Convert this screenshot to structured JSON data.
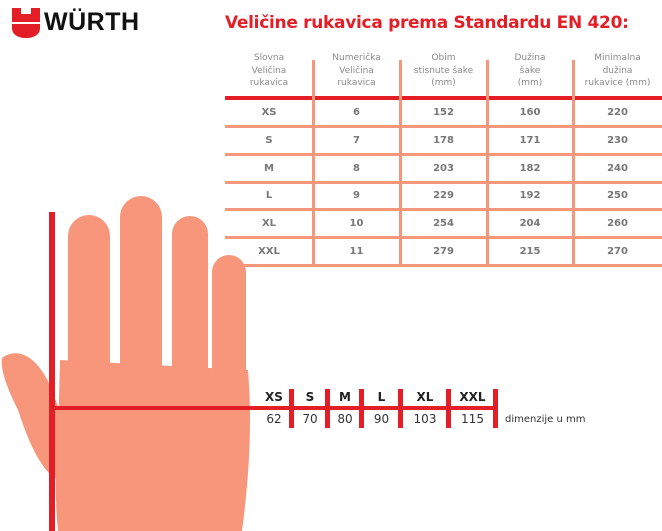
{
  "logo": {
    "text": "WÜRTH"
  },
  "title": "Veličine rukavica prema Standardu EN 420:",
  "table": {
    "headers": [
      "Slovna\nVeličina\nrukavica",
      "Numerička\nVeličina\nrukavica",
      "Obim\nstisnute šake\n(mm)",
      "Dužina\nšake\n(mm)",
      "Minimalna\ndužina\nrukavice (mm)"
    ],
    "rows": [
      [
        "XS",
        "6",
        "152",
        "160",
        "220"
      ],
      [
        "S",
        "7",
        "178",
        "171",
        "230"
      ],
      [
        "M",
        "8",
        "203",
        "182",
        "240"
      ],
      [
        "L",
        "9",
        "229",
        "192",
        "250"
      ],
      [
        "XL",
        "10",
        "254",
        "204",
        "260"
      ],
      [
        "XXL",
        "11",
        "279",
        "215",
        "270"
      ]
    ]
  },
  "hand_scale": {
    "sizes": [
      "XS",
      "S",
      "M",
      "L",
      "XL",
      "XXL"
    ],
    "values": [
      "62",
      "70",
      "80",
      "90",
      "103",
      "115"
    ],
    "unit_label": "dimenzije u mm"
  },
  "colors": {
    "accent": "#e41e26",
    "hand": "#f7967a"
  }
}
